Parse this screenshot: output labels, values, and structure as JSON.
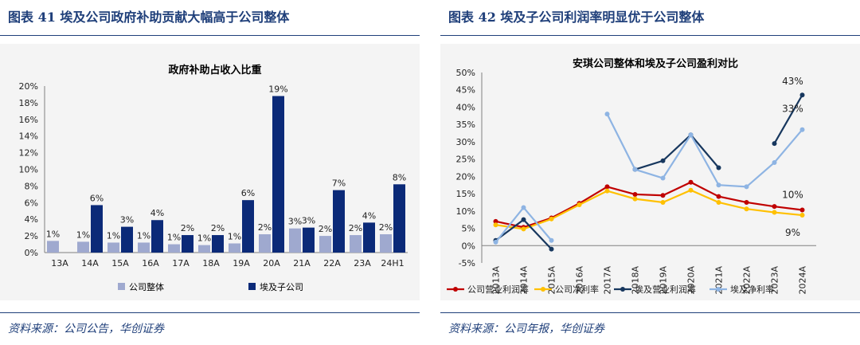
{
  "left": {
    "figure_title": "图表 41   埃及公司政府补助贡献大幅高于公司整体",
    "source": "资料来源：公司公告，华创证券"
  },
  "right": {
    "figure_title": "图表 42   埃及子公司利润率明显优于公司整体",
    "source": "资料来源：公司年报，华创证券"
  },
  "colors": {
    "navy": "#1f3f7a",
    "light_bar": "#9fa9cf",
    "dark_bar": "#0b2a78",
    "red": "#c00000",
    "gold": "#ffc000",
    "dark_line": "#17375e",
    "light_line": "#8eb4e3"
  },
  "chart_data": [
    {
      "type": "bar",
      "title": "政府补助占收入比重",
      "categories": [
        "13A",
        "14A",
        "15A",
        "16A",
        "17A",
        "18A",
        "19A",
        "20A",
        "21A",
        "22A",
        "23A",
        "24H1"
      ],
      "yticks": [
        "0%",
        "2%",
        "4%",
        "6%",
        "8%",
        "10%",
        "12%",
        "14%",
        "16%",
        "18%",
        "20%"
      ],
      "ylim": [
        0,
        20
      ],
      "grid": false,
      "legend_position": "bottom",
      "series": [
        {
          "name": "公司整体",
          "color": "#9fa9cf",
          "values": [
            1.4,
            1.3,
            1.2,
            1.2,
            1.0,
            0.9,
            1.1,
            2.2,
            2.9,
            2.0,
            2.1,
            2.2
          ],
          "labels": [
            "1%",
            "1%",
            "1%",
            "1%",
            "1%",
            "1%",
            "1%",
            "2%",
            "3%",
            "2%",
            "2%",
            "2%"
          ]
        },
        {
          "name": "埃及子公司",
          "color": "#0b2a78",
          "values": [
            null,
            5.7,
            3.1,
            3.9,
            2.1,
            2.1,
            6.3,
            18.8,
            3.0,
            7.5,
            3.6,
            8.2
          ],
          "labels": [
            null,
            "6%",
            "3%",
            "4%",
            "2%",
            "2%",
            "6%",
            "19%",
            "3%",
            "7%",
            "4%",
            "8%"
          ]
        }
      ]
    },
    {
      "type": "line",
      "title": "安琪公司整体和埃及子公司盈利对比",
      "categories": [
        "2013A",
        "2014A",
        "2015A",
        "2016A",
        "2017A",
        "2018A",
        "2019A",
        "2020A",
        "2021A",
        "2022A",
        "2023A",
        "2024A"
      ],
      "yticks": [
        "-5%",
        "0%",
        "5%",
        "10%",
        "15%",
        "20%",
        "25%",
        "30%",
        "35%",
        "40%",
        "45%",
        "50%"
      ],
      "ylim": [
        -5,
        50
      ],
      "grid": false,
      "legend_position": "bottom",
      "series": [
        {
          "name": "公司营业利润率",
          "color": "#c00000",
          "values": [
            7.0,
            5.3,
            8.0,
            12.2,
            17.0,
            14.8,
            14.5,
            18.3,
            14.2,
            12.5,
            11.3,
            10.3
          ]
        },
        {
          "name": "公司净利率",
          "color": "#ffc000",
          "values": [
            6.0,
            4.8,
            7.7,
            11.8,
            15.8,
            13.5,
            12.5,
            16.0,
            12.5,
            10.6,
            9.6,
            8.8
          ]
        },
        {
          "name": "埃及营业利润率",
          "color": "#17375e",
          "values": [
            1.5,
            7.5,
            -1.0,
            null,
            null,
            22.0,
            24.5,
            32.0,
            22.5,
            null,
            29.5,
            43.5
          ]
        },
        {
          "name": "埃及净利率",
          "color": "#8eb4e3",
          "values": [
            1.0,
            11.0,
            1.5,
            null,
            38.0,
            22.0,
            19.5,
            32.0,
            17.5,
            17.0,
            24.0,
            33.5
          ]
        }
      ],
      "annotations": [
        "43%",
        "33%",
        "10%",
        "9%"
      ]
    }
  ]
}
